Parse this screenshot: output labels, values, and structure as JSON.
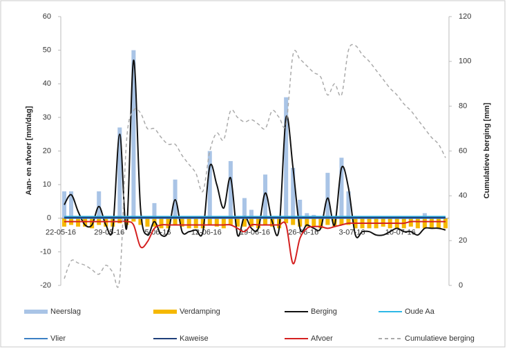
{
  "chart_data": {
    "type": "combo",
    "y_label": "Aan- en afvoer [mm/dag]",
    "y2_label": "Cumulatieve berging [mm]",
    "ylim": [
      -20,
      60
    ],
    "yticks": [
      -20,
      -10,
      0,
      10,
      20,
      30,
      40,
      50,
      60
    ],
    "y2lim": [
      0,
      120
    ],
    "y2ticks": [
      0,
      20,
      40,
      60,
      80,
      100,
      120
    ],
    "categories": [
      "22-05-16",
      null,
      null,
      null,
      null,
      null,
      null,
      "29-05-16",
      null,
      null,
      null,
      null,
      null,
      null,
      "5-06-16",
      null,
      null,
      null,
      null,
      null,
      null,
      "12-06-16",
      null,
      null,
      null,
      null,
      null,
      null,
      "19-06-16",
      null,
      null,
      null,
      null,
      null,
      null,
      "26-06-16",
      null,
      null,
      null,
      null,
      null,
      null,
      "3-07-16",
      null,
      null,
      null,
      null,
      null,
      null,
      "10-07-16",
      null,
      null,
      null,
      null,
      null,
      null
    ],
    "series": [
      {
        "name": "Neerslag",
        "type": "bar",
        "color": "#a9c4e6",
        "values": [
          8,
          8,
          0,
          0,
          0,
          8,
          0,
          0,
          27,
          0,
          50,
          0,
          0,
          4.5,
          0,
          0,
          11.5,
          0,
          0,
          0,
          0,
          20,
          0,
          0,
          17,
          0,
          6,
          2.5,
          0,
          13,
          0,
          0,
          36,
          15,
          5.5,
          1.5,
          1,
          0,
          13.5,
          0,
          18,
          8,
          0,
          0,
          0,
          0,
          0,
          0,
          0,
          0,
          0,
          0,
          1.5,
          0,
          0,
          0
        ]
      },
      {
        "name": "Verdamping",
        "type": "bar",
        "color": "#f5b800",
        "values": [
          -2.5,
          -2,
          -2.5,
          -2.5,
          -3,
          -2,
          -2.5,
          -2.5,
          -1.5,
          -2,
          -1,
          -2,
          -2.5,
          -2.5,
          -3,
          -3,
          -2,
          -2.5,
          -3,
          -3,
          -3,
          -2,
          -2.5,
          -3,
          -2,
          -2.5,
          -2.5,
          -2.5,
          -3,
          -2,
          -2.5,
          -3,
          -1.5,
          -2,
          -2.5,
          -2.5,
          -2.5,
          -3,
          -2,
          -2.5,
          -2,
          -2,
          -3,
          -3,
          -3,
          -3,
          -2.5,
          -3,
          -3,
          -3,
          -2.5,
          -3,
          -3,
          -3,
          -3,
          -3
        ]
      },
      {
        "name": "Berging",
        "type": "line",
        "color": "#111111",
        "values": [
          4,
          7,
          2,
          -2,
          -2,
          3.5,
          -2,
          -3,
          25,
          -3,
          47,
          3,
          -5,
          -1,
          -5,
          -4,
          5.5,
          -4,
          -4,
          -3.5,
          -4,
          15.5,
          10,
          3,
          12,
          -5,
          0.5,
          -3,
          -3,
          7.5,
          -1,
          -3,
          30,
          15,
          -3,
          -2,
          -3,
          -3,
          6,
          -2,
          15,
          9,
          -5,
          -4,
          -4,
          -5,
          -5,
          -4,
          -3,
          -4,
          -4,
          -5,
          -3,
          -3,
          -3,
          -3.5
        ]
      },
      {
        "name": "Oude Aa",
        "type": "line",
        "color": "#2db8e6",
        "values": [
          0.5,
          0.5,
          0.5,
          0.5,
          0.5,
          0.5,
          0.5,
          0.5,
          0.5,
          0.5,
          0.5,
          0.5,
          0.5,
          0.5,
          0.5,
          0.5,
          0.5,
          0.5,
          0.5,
          0.5,
          0.5,
          0.5,
          0.5,
          0.5,
          0.5,
          0.5,
          0.5,
          0.5,
          0.5,
          0.5,
          0.5,
          0.5,
          0.5,
          0.5,
          0.5,
          0.5,
          0.5,
          0.5,
          0.5,
          0.5,
          0.5,
          0.5,
          0.5,
          0.5,
          0.5,
          0.5,
          0.5,
          0.5,
          0.5,
          0.5,
          0.5,
          0.5,
          0.5,
          0.5,
          0.5,
          0.5
        ]
      },
      {
        "name": "Vlier",
        "type": "line",
        "color": "#3b7fc4",
        "values": [
          0,
          0,
          0,
          0,
          0,
          0,
          0,
          0,
          0,
          0,
          0,
          0,
          0,
          0,
          0,
          0,
          0,
          0,
          0,
          0,
          0,
          0,
          0,
          0,
          0,
          0,
          0,
          0,
          0,
          0,
          0,
          0,
          0,
          0,
          0,
          0,
          0,
          0,
          0,
          0,
          0,
          0,
          0,
          0,
          0,
          0,
          0,
          0,
          0,
          0,
          0,
          0,
          0,
          0,
          0,
          0
        ]
      },
      {
        "name": "Kaweise",
        "type": "line",
        "color": "#1f3f7a",
        "values": [
          0.2,
          0.2,
          0.2,
          0.2,
          0.2,
          0.2,
          0.2,
          0.2,
          0.2,
          0.2,
          0.2,
          0.2,
          0.2,
          0.2,
          0.2,
          0.2,
          0.2,
          0.2,
          0.2,
          0.2,
          0.2,
          0.2,
          0.2,
          0.2,
          0.2,
          0.2,
          0.2,
          0.2,
          0.2,
          0.2,
          0.2,
          0.2,
          0.2,
          0.2,
          0.2,
          0.2,
          0.2,
          0.2,
          0.2,
          0.2,
          0.2,
          0.2,
          0.2,
          0.2,
          0.2,
          0.2,
          0.2,
          0.2,
          0.2,
          0.2,
          0.2,
          0.2,
          0.2,
          0.2,
          0.2,
          0.2
        ]
      },
      {
        "name": "Afvoer",
        "type": "line",
        "color": "#d42020",
        "values": [
          -1,
          -1,
          -1,
          -1,
          -1,
          -1,
          -1,
          -1,
          -1,
          -1,
          -2,
          -8.5,
          -7,
          -3,
          -2,
          -2,
          -2,
          -2,
          -2,
          -2,
          -2,
          -2,
          -2,
          -2,
          -2,
          -3,
          -4,
          -2,
          -2,
          -2,
          -2,
          -2,
          -2,
          -13.5,
          -6,
          -3,
          -2.5,
          -2.5,
          -3,
          -2.5,
          -2,
          -1.5,
          -1.5,
          -1.5,
          -1.5,
          -1.5,
          -1.5,
          -1.5,
          -1.5,
          -1.5,
          -1,
          -1,
          -1,
          -1,
          -1,
          -1
        ]
      },
      {
        "name": "Cumulatieve berging",
        "type": "line",
        "axis": "y2",
        "dashed": true,
        "color": "#aaaaaa",
        "values": [
          3,
          11,
          10,
          9,
          7,
          5,
          9,
          6,
          3,
          65,
          78,
          77,
          70,
          70,
          66,
          63,
          63,
          58,
          54,
          50,
          42,
          60,
          68,
          65,
          78,
          75,
          73,
          74,
          72,
          70,
          78,
          75,
          72,
          103,
          101,
          98,
          95,
          93,
          85,
          90,
          85,
          105,
          107,
          103,
          100,
          96,
          92,
          88,
          85,
          81,
          78,
          74,
          70,
          66,
          63,
          57
        ]
      }
    ],
    "legend": "bottom"
  }
}
